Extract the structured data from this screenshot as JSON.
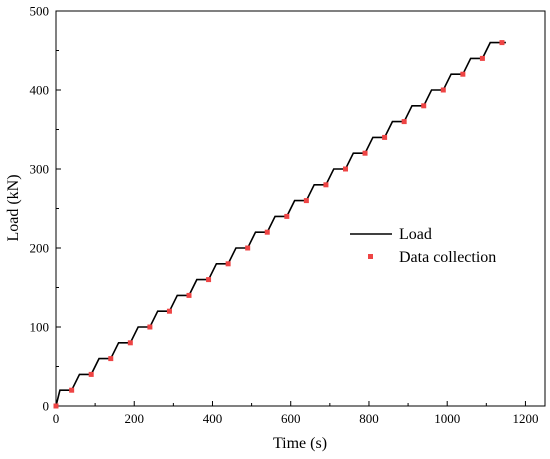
{
  "chart_data": {
    "type": "line",
    "title": "",
    "xlabel": "Time  (s)",
    "ylabel": "Load  (kN)",
    "xlim": [
      0,
      1250
    ],
    "ylim": [
      0,
      500
    ],
    "xticks": [
      0,
      200,
      400,
      600,
      800,
      1000,
      1200
    ],
    "yticks": [
      0,
      100,
      200,
      300,
      400,
      500
    ],
    "grid": false,
    "legend_position": "center-right",
    "series": [
      {
        "name": "Load",
        "kind": "line",
        "color": "#000000",
        "x": [
          0,
          10,
          40,
          60,
          90,
          110,
          140,
          160,
          190,
          210,
          240,
          260,
          290,
          310,
          340,
          360,
          390,
          410,
          440,
          460,
          490,
          510,
          540,
          560,
          590,
          610,
          640,
          660,
          690,
          710,
          740,
          760,
          790,
          810,
          840,
          860,
          890,
          910,
          940,
          960,
          990,
          1010,
          1040,
          1060,
          1090,
          1110,
          1140,
          1150
        ],
        "y": [
          0,
          20,
          20,
          40,
          40,
          60,
          60,
          80,
          80,
          100,
          100,
          120,
          120,
          140,
          140,
          160,
          160,
          180,
          180,
          200,
          200,
          220,
          220,
          240,
          240,
          260,
          260,
          280,
          280,
          300,
          300,
          320,
          320,
          340,
          340,
          360,
          360,
          380,
          380,
          400,
          400,
          420,
          420,
          440,
          440,
          460,
          460,
          460
        ]
      },
      {
        "name": "Data collection",
        "kind": "scatter",
        "color": "#ee4444",
        "x": [
          0,
          40,
          90,
          140,
          190,
          240,
          290,
          340,
          390,
          440,
          490,
          540,
          590,
          640,
          690,
          740,
          790,
          840,
          890,
          940,
          990,
          1040,
          1090,
          1140
        ],
        "y": [
          0,
          20,
          40,
          60,
          80,
          100,
          120,
          140,
          160,
          180,
          200,
          220,
          240,
          260,
          280,
          300,
          320,
          340,
          360,
          380,
          400,
          420,
          440,
          460
        ]
      }
    ]
  }
}
